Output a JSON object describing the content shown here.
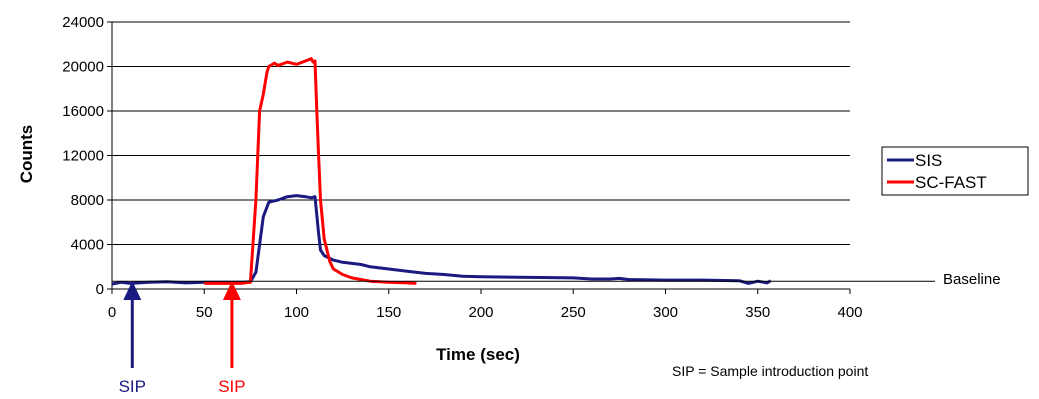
{
  "chart_data": {
    "type": "line",
    "title": "",
    "xlabel": "Time (sec)",
    "ylabel": "Counts",
    "xlim": [
      0,
      400
    ],
    "ylim": [
      0,
      24000
    ],
    "x_ticks": [
      0,
      50,
      100,
      150,
      200,
      250,
      300,
      350,
      400
    ],
    "y_ticks": [
      0,
      4000,
      8000,
      12000,
      16000,
      20000,
      24000
    ],
    "grid": "horizontal",
    "legend_position": "right",
    "series": [
      {
        "name": "SIS",
        "color": "#1a1a80",
        "points": [
          [
            0,
            450
          ],
          [
            5,
            600
          ],
          [
            10,
            500
          ],
          [
            20,
            600
          ],
          [
            30,
            650
          ],
          [
            40,
            550
          ],
          [
            50,
            600
          ],
          [
            60,
            600
          ],
          [
            70,
            600
          ],
          [
            75,
            650
          ],
          [
            78,
            1500
          ],
          [
            80,
            4000
          ],
          [
            82,
            6500
          ],
          [
            85,
            7800
          ],
          [
            90,
            8000
          ],
          [
            95,
            8300
          ],
          [
            100,
            8400
          ],
          [
            105,
            8300
          ],
          [
            108,
            8200
          ],
          [
            110,
            8300
          ],
          [
            112,
            5000
          ],
          [
            113,
            3500
          ],
          [
            115,
            3000
          ],
          [
            120,
            2600
          ],
          [
            125,
            2400
          ],
          [
            130,
            2300
          ],
          [
            135,
            2200
          ],
          [
            140,
            2000
          ],
          [
            150,
            1800
          ],
          [
            160,
            1600
          ],
          [
            170,
            1400
          ],
          [
            180,
            1300
          ],
          [
            190,
            1150
          ],
          [
            200,
            1100
          ],
          [
            220,
            1050
          ],
          [
            250,
            1000
          ],
          [
            260,
            900
          ],
          [
            270,
            900
          ],
          [
            275,
            950
          ],
          [
            280,
            850
          ],
          [
            300,
            800
          ],
          [
            320,
            800
          ],
          [
            340,
            750
          ],
          [
            345,
            500
          ],
          [
            350,
            700
          ],
          [
            355,
            550
          ],
          [
            357,
            750
          ]
        ]
      },
      {
        "name": "SC-FAST",
        "color": "#ff0000",
        "points": [
          [
            50,
            500
          ],
          [
            60,
            500
          ],
          [
            70,
            500
          ],
          [
            75,
            600
          ],
          [
            78,
            8000
          ],
          [
            80,
            16000
          ],
          [
            82,
            17500
          ],
          [
            84,
            19500
          ],
          [
            85,
            20000
          ],
          [
            88,
            20300
          ],
          [
            90,
            20100
          ],
          [
            95,
            20400
          ],
          [
            100,
            20200
          ],
          [
            105,
            20500
          ],
          [
            108,
            20700
          ],
          [
            109,
            20400
          ],
          [
            110,
            20500
          ],
          [
            111,
            16000
          ],
          [
            112,
            12000
          ],
          [
            113,
            8000
          ],
          [
            115,
            4500
          ],
          [
            118,
            2500
          ],
          [
            120,
            1800
          ],
          [
            125,
            1300
          ],
          [
            130,
            1000
          ],
          [
            140,
            700
          ],
          [
            150,
            600
          ],
          [
            160,
            550
          ],
          [
            165,
            500
          ]
        ]
      }
    ],
    "annotations": {
      "baseline_label": "Baseline",
      "baseline_value": 700,
      "sip_label": "SIP",
      "sip_points": [
        {
          "x": 11,
          "color": "#1a1a80"
        },
        {
          "x": 65,
          "color": "#ff0000"
        }
      ],
      "note": "SIP = Sample introduction point"
    }
  }
}
